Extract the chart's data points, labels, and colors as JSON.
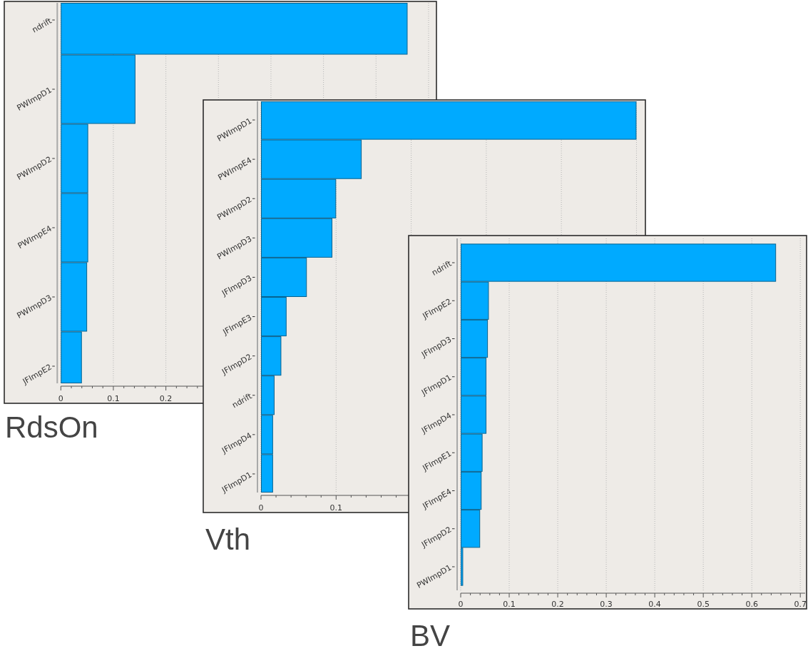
{
  "chart_data": [
    {
      "type": "bar",
      "orientation": "horizontal",
      "title": "RdsOn",
      "categories": [
        "ndrift",
        "PWImpD1",
        "PWImpD2",
        "PWImpE4",
        "PWImpD3",
        "JFImpE2"
      ],
      "values": [
        0.66,
        0.142,
        0.052,
        0.052,
        0.05,
        0.04
      ],
      "color": "#00aaff",
      "xlim": [
        0,
        0.71
      ],
      "xticks": [
        0,
        0.1,
        0.2,
        {
          "value": 0.3,
          "label": null
        },
        {
          "value": 0.4,
          "label": null
        },
        {
          "value": 0.5,
          "label": null
        },
        {
          "value": 0.6,
          "label": null
        },
        {
          "value": 0.7,
          "label": null
        }
      ],
      "grid": "x"
    },
    {
      "type": "bar",
      "orientation": "horizontal",
      "title": "Vth",
      "categories": [
        "PWImpD1",
        "PWImpE4",
        "PWImpD2",
        "PWImpD3",
        "JFImpD3",
        "JFImpE3",
        "JFImpD2",
        "ndrift",
        "JFImpD4",
        "JFImpD1"
      ],
      "values": [
        0.5,
        0.134,
        0.1,
        0.095,
        0.061,
        0.034,
        0.027,
        0.018,
        0.016,
        0.016
      ],
      "color": "#00aaff",
      "xlim": [
        0,
        0.51
      ],
      "xticks": [
        0,
        0.1,
        {
          "value": 0.2,
          "label": null
        },
        {
          "value": 0.3,
          "label": null
        },
        {
          "value": 0.4,
          "label": null
        },
        {
          "value": 0.5,
          "label": null
        }
      ],
      "grid": "x"
    },
    {
      "type": "bar",
      "orientation": "horizontal",
      "title": "BV",
      "categories": [
        "ndrift",
        "JFImpE2",
        "JFImpD3",
        "JFImpD1",
        "JFImpD4",
        "JFImpE1",
        "JFImpE4",
        "JFImpD2",
        "PWImpD1"
      ],
      "values": [
        0.65,
        0.058,
        0.056,
        0.053,
        0.053,
        0.045,
        0.043,
        0.04,
        0.005
      ],
      "color": "#00aaff",
      "xlim": [
        0,
        0.71
      ],
      "xticks": [
        0,
        0.1,
        0.2,
        0.3,
        0.4,
        0.5,
        0.6,
        0.7
      ],
      "grid": "x"
    }
  ]
}
